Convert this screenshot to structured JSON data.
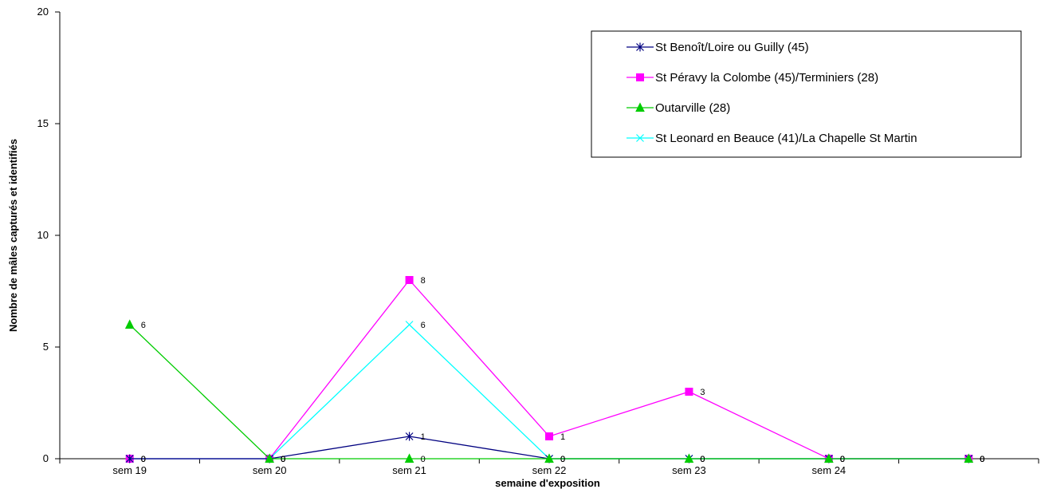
{
  "chart_data": {
    "type": "line",
    "title": "",
    "xlabel": "semaine d'exposition",
    "ylabel": "Nombre de mâles capturés et identifiés",
    "ylim": [
      0,
      20
    ],
    "yticks": [
      "0",
      "5",
      "10",
      "15",
      "20"
    ],
    "categories": [
      "sem 19",
      "sem 20",
      "sem 21",
      "sem 22",
      "sem 23",
      "sem 24",
      ""
    ],
    "grid": false,
    "legend_position": "top-right",
    "series": [
      {
        "name": "St Benoît/Loire ou Guilly (45)",
        "color": "#000080",
        "marker": "star",
        "values": [
          0,
          0,
          1,
          0,
          0,
          0,
          0
        ]
      },
      {
        "name": "St Péravy la Colombe (45)/Terminiers (28)",
        "color": "#FF00FF",
        "marker": "square",
        "values": [
          0,
          0,
          8,
          1,
          3,
          0,
          0
        ]
      },
      {
        "name": "Outarville (28)",
        "color": "#00CC00",
        "marker": "triangle",
        "values": [
          6,
          0,
          0,
          0,
          0,
          0,
          0
        ]
      },
      {
        "name": "St Leonard en Beauce (41)/La Chapelle St Martin",
        "color": "#00FFFF",
        "marker": "x",
        "values": [
          0,
          0,
          6,
          0,
          0,
          0,
          0
        ]
      }
    ],
    "data_labels": [
      {
        "series": 0,
        "index": 0,
        "text": "0"
      },
      {
        "series": 0,
        "index": 1,
        "text": "0"
      },
      {
        "series": 0,
        "index": 2,
        "text": "1"
      },
      {
        "series": 0,
        "index": 3,
        "text": "0"
      },
      {
        "series": 0,
        "index": 4,
        "text": "0"
      },
      {
        "series": 0,
        "index": 5,
        "text": "0"
      },
      {
        "series": 0,
        "index": 6,
        "text": "0"
      },
      {
        "series": 1,
        "index": 0,
        "text": "0"
      },
      {
        "series": 1,
        "index": 1,
        "text": "0"
      },
      {
        "series": 1,
        "index": 2,
        "text": "8"
      },
      {
        "series": 1,
        "index": 3,
        "text": "1"
      },
      {
        "series": 1,
        "index": 4,
        "text": "3"
      },
      {
        "series": 1,
        "index": 5,
        "text": "0"
      },
      {
        "series": 1,
        "index": 6,
        "text": "0"
      },
      {
        "series": 2,
        "index": 0,
        "text": "6"
      },
      {
        "series": 2,
        "index": 1,
        "text": "0"
      },
      {
        "series": 2,
        "index": 2,
        "text": "0"
      },
      {
        "series": 2,
        "index": 3,
        "text": "0"
      },
      {
        "series": 2,
        "index": 4,
        "text": "0"
      },
      {
        "series": 2,
        "index": 5,
        "text": "0"
      },
      {
        "series": 2,
        "index": 6,
        "text": "0"
      },
      {
        "series": 3,
        "index": 0,
        "text": "0"
      },
      {
        "series": 3,
        "index": 1,
        "text": "0"
      },
      {
        "series": 3,
        "index": 2,
        "text": "6"
      },
      {
        "series": 3,
        "index": 3,
        "text": "0"
      },
      {
        "series": 3,
        "index": 4,
        "text": "0"
      },
      {
        "series": 3,
        "index": 5,
        "text": "0"
      },
      {
        "series": 3,
        "index": 6,
        "text": "0"
      }
    ]
  }
}
